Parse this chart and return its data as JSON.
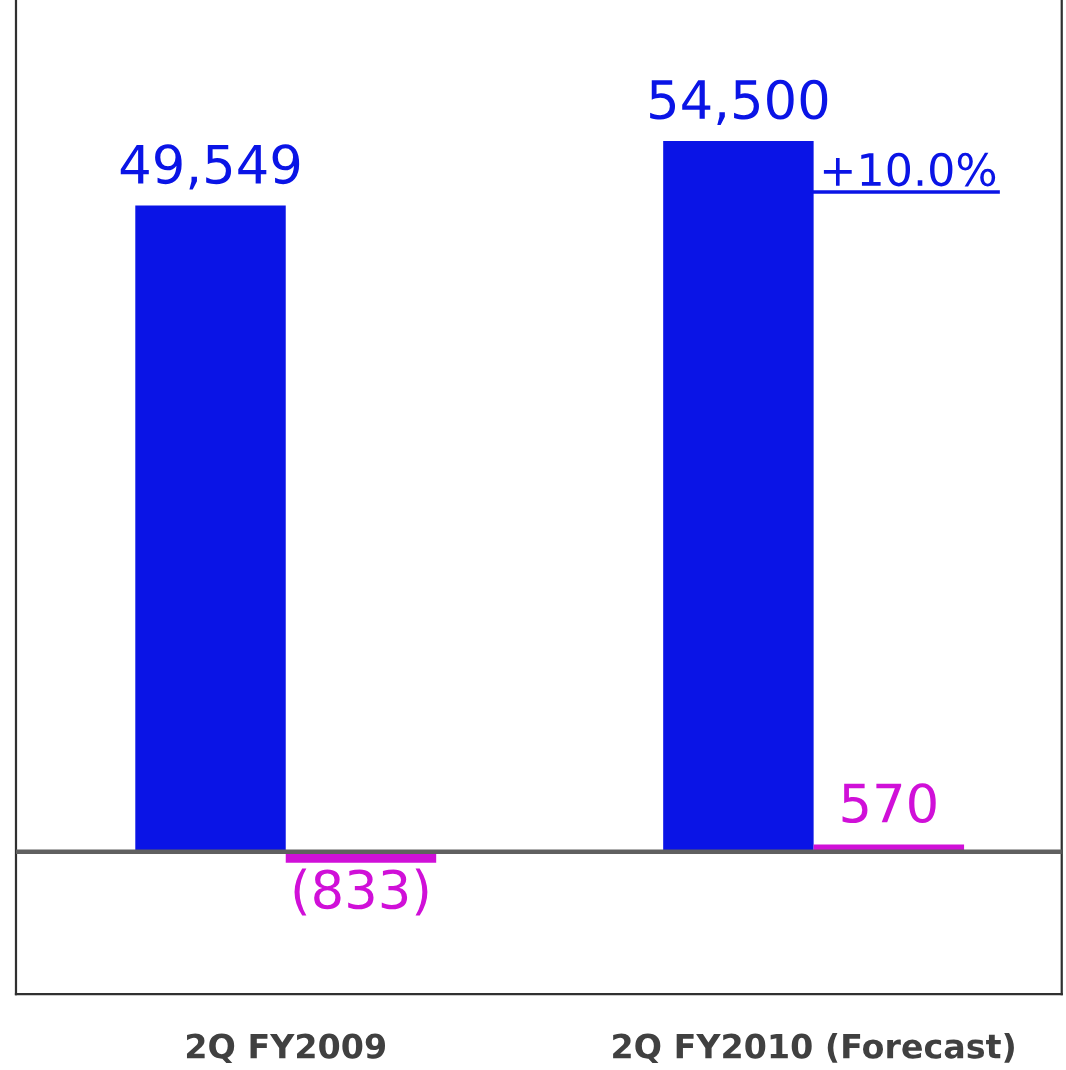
{
  "chart_data": {
    "type": "bar",
    "categories": [
      "2Q FY2009",
      "2Q FY2010 (Forecast)"
    ],
    "series": [
      {
        "color": "#0a14e6",
        "values": [
          49549,
          54500
        ],
        "value_labels": [
          "49,549",
          "54,500"
        ]
      },
      {
        "color": "#d010d8",
        "values": [
          -833,
          570
        ],
        "value_labels": [
          "(833)",
          "570"
        ]
      }
    ],
    "ylim": [
      -10900,
      65300
    ],
    "tick_labels": "x",
    "ref_lines": [
      {
        "axis": "y",
        "value": 0,
        "color": "#606060"
      }
    ],
    "annotations": [
      "+10.0%"
    ],
    "grid": false,
    "legend": false
  }
}
